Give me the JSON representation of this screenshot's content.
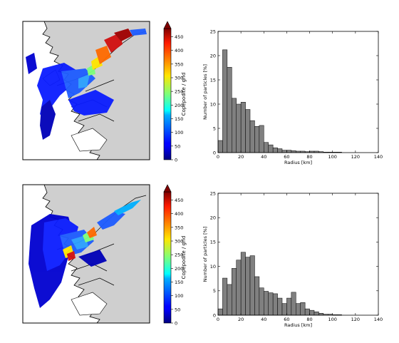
{
  "colors": {
    "land": "#ffffff",
    "sea": "#cfcfcf",
    "coast": "#000000",
    "bar": "#808080",
    "bar_edge": "#000000"
  },
  "colorbar": {
    "label": "Copepodite / grid",
    "ticks": [
      0,
      50,
      100,
      150,
      200,
      250,
      300,
      350,
      400,
      450
    ],
    "range": [
      0,
      480
    ],
    "colormap": "jet",
    "extend": "max"
  },
  "chart_data": [
    {
      "type": "heatmap",
      "panel": "top-left",
      "description_of_field": "particle concentration map",
      "colorbar_label": "Copepodite / grid",
      "colorbar_ticks": [
        0,
        50,
        100,
        150,
        200,
        250,
        300,
        350,
        400,
        450
      ],
      "vmin": 0,
      "vmax": 480
    },
    {
      "type": "bar",
      "panel": "top-right",
      "xlabel": "Radius [km]",
      "ylabel": "Number of particles [%]",
      "xlim": [
        0,
        140
      ],
      "ylim": [
        0,
        25
      ],
      "xticks": [
        0,
        20,
        40,
        60,
        80,
        100,
        120,
        140
      ],
      "yticks": [
        0,
        5,
        10,
        15,
        20,
        25
      ],
      "bin_width": 4,
      "bin_starts": [
        0,
        4,
        8,
        12,
        16,
        20,
        24,
        28,
        32,
        36,
        40,
        44,
        48,
        52,
        56,
        60,
        64,
        68,
        72,
        76,
        80,
        84,
        88,
        92,
        96,
        100,
        104
      ],
      "values": [
        2.5,
        21.2,
        17.6,
        11.2,
        10.0,
        10.4,
        8.9,
        6.6,
        5.4,
        5.6,
        2.1,
        1.6,
        1.0,
        0.8,
        0.5,
        0.5,
        0.4,
        0.3,
        0.3,
        0.2,
        0.3,
        0.3,
        0.2,
        0.1,
        0.1,
        0.1,
        0.1
      ]
    },
    {
      "type": "heatmap",
      "panel": "bottom-left",
      "colorbar_label": "Copepodite / grid",
      "colorbar_ticks": [
        0,
        50,
        100,
        150,
        200,
        250,
        300,
        350,
        400,
        450
      ],
      "vmin": 0,
      "vmax": 480
    },
    {
      "type": "bar",
      "panel": "bottom-right",
      "xlabel": "Radius [km]",
      "ylabel": "Number of particles [%]",
      "xlim": [
        0,
        140
      ],
      "ylim": [
        0,
        25
      ],
      "xticks": [
        0,
        20,
        40,
        60,
        80,
        100,
        120,
        140
      ],
      "yticks": [
        0,
        5,
        10,
        15,
        20,
        25
      ],
      "bin_width": 4,
      "bin_starts": [
        0,
        4,
        8,
        12,
        16,
        20,
        24,
        28,
        32,
        36,
        40,
        44,
        48,
        52,
        56,
        60,
        64,
        68,
        72,
        76,
        80,
        84,
        88,
        92,
        96,
        100,
        104
      ],
      "values": [
        1.3,
        7.6,
        6.3,
        9.6,
        11.3,
        12.9,
        11.9,
        12.2,
        7.9,
        5.6,
        4.9,
        4.6,
        4.4,
        3.5,
        2.4,
        3.5,
        4.7,
        2.4,
        2.6,
        1.3,
        1.0,
        0.7,
        0.4,
        0.2,
        0.2,
        0.1,
        0.1
      ]
    }
  ]
}
